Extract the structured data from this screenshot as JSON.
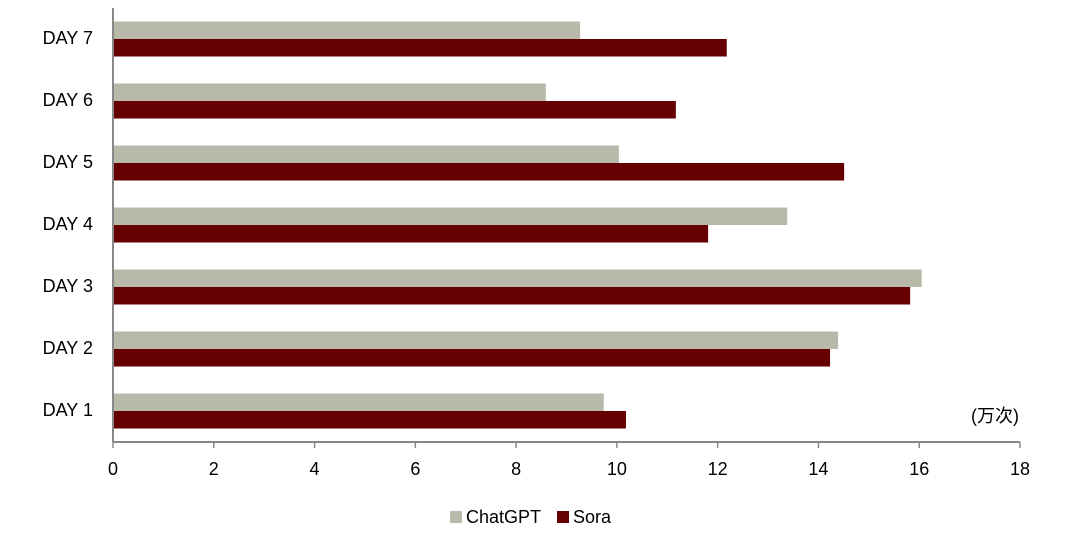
{
  "chart_data": {
    "type": "hbar",
    "categories": [
      "DAY 1",
      "DAY 2",
      "DAY 3",
      "DAY 4",
      "DAY 5",
      "DAY 6",
      "DAY 7"
    ],
    "series": [
      {
        "name": "ChatGPT",
        "color": "#b9b9a9",
        "values": [
          9.74,
          14.39,
          16.05,
          13.38,
          10.04,
          8.59,
          9.27
        ]
      },
      {
        "name": "Sora",
        "color": "#660000",
        "values": [
          10.18,
          14.23,
          15.82,
          11.81,
          14.51,
          11.17,
          12.18
        ]
      }
    ],
    "xlim": [
      0,
      18
    ],
    "xticks": [
      0,
      2,
      4,
      6,
      8,
      10,
      12,
      14,
      16,
      18
    ],
    "unit_label": "(万次)",
    "legend": "bottom"
  }
}
